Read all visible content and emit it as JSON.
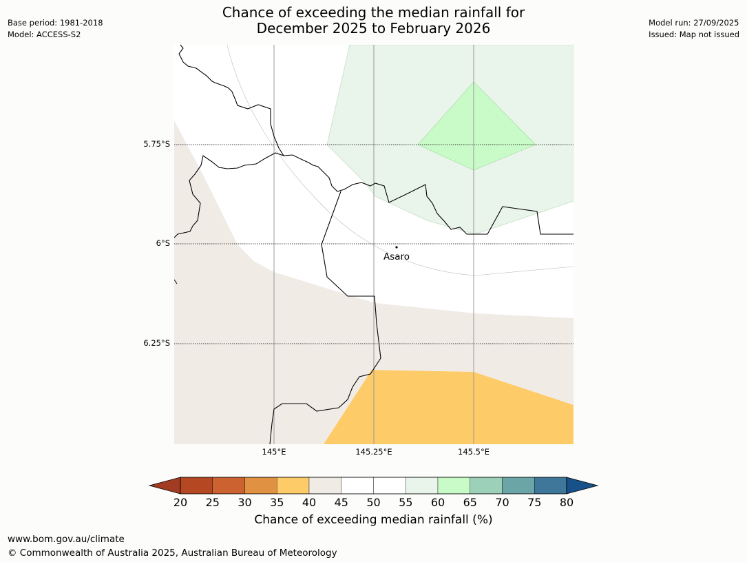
{
  "meta": {
    "base_period": "Base period: 1981-2018",
    "model": "Model: ACCESS-S2",
    "model_run": "Model run: 27/09/2025",
    "issued": "Issued: Map not issued"
  },
  "title": {
    "line1": "Chance of exceeding the median rainfall for",
    "line2": "December 2025 to February 2026"
  },
  "map": {
    "lat_labels": [
      "5.75°S",
      "6°S",
      "6.25°S"
    ],
    "lon_labels": [
      "145°E",
      "145.25°E",
      "145.5°E"
    ],
    "place": "Asaro",
    "region_colors": {
      "p35_40": "#fdcb67",
      "p40_45": "#f1ebe6",
      "p55_60": "#e9f4ea",
      "p60_65": "#c9fbc8"
    }
  },
  "colorbar": {
    "ticks": [
      "20",
      "25",
      "30",
      "35",
      "40",
      "45",
      "50",
      "55",
      "60",
      "65",
      "70",
      "75",
      "80"
    ],
    "colors": [
      "#a13b22",
      "#b54822",
      "#cb6230",
      "#e09242",
      "#fdcb67",
      "#f1ebe6",
      "#ffffff",
      "#ffffff",
      "#e9f4ea",
      "#c9fbc8",
      "#9dd0b8",
      "#6ca5a6",
      "#3f779a",
      "#17518a"
    ],
    "label": "Chance of exceeding median rainfall (%)"
  },
  "footer": {
    "url": "www.bom.gov.au/climate",
    "copyright": "© Commonwealth of Australia 2025, Australian Bureau of Meteorology"
  }
}
